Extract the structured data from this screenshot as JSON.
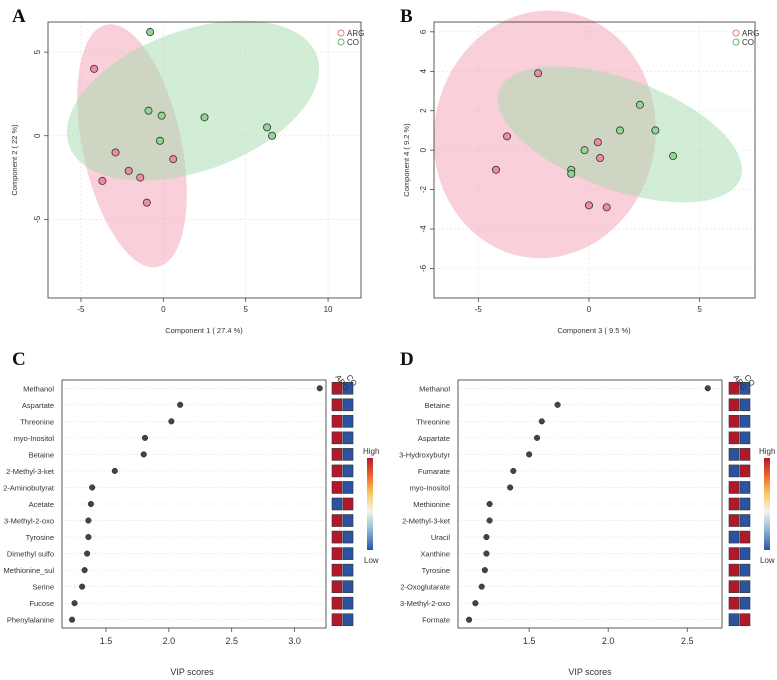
{
  "colors": {
    "arg": "#e8788f",
    "arg_fill": "#f4a0b4",
    "co": "#5cbf6c",
    "co_fill": "#a3dbac",
    "heat_high": "#b2182b",
    "heat_low": "#2c52a0"
  },
  "chart_data": [
    {
      "type": "scatter",
      "panel": "A",
      "xlabel": "Component 1 ( 27.4 %)",
      "ylabel": "Component 2 ( 22 %)",
      "xlim": [
        -7,
        12
      ],
      "ylim": [
        -9.7,
        6.8
      ],
      "xticks": [
        -5,
        0,
        5,
        10
      ],
      "yticks": [
        -5,
        0,
        5
      ],
      "legend": [
        "ARG",
        "CO"
      ],
      "legend_position": "top-right",
      "series": [
        {
          "name": "ARG",
          "points": [
            [
              -4.2,
              4.0
            ],
            [
              -2.9,
              -1.0
            ],
            [
              -2.1,
              -2.1
            ],
            [
              -1.4,
              -2.5
            ],
            [
              -1.0,
              -4.0
            ],
            [
              -3.7,
              -2.7
            ],
            [
              0.6,
              -1.4
            ]
          ]
        },
        {
          "name": "CO",
          "points": [
            [
              -0.8,
              6.2
            ],
            [
              -0.9,
              1.5
            ],
            [
              -0.1,
              1.2
            ],
            [
              -0.2,
              -0.3
            ],
            [
              2.5,
              1.1
            ],
            [
              6.3,
              0.5
            ],
            [
              6.6,
              0.0
            ]
          ]
        }
      ],
      "ellipses": [
        {
          "series": "ARG",
          "cx": -1.9,
          "cy": -0.6,
          "rx": 3.0,
          "ry": 7.4,
          "angle": -12
        },
        {
          "series": "CO",
          "cx": 1.8,
          "cy": 2.1,
          "rx": 8.0,
          "ry": 4.2,
          "angle": -20
        }
      ]
    },
    {
      "type": "scatter",
      "panel": "B",
      "xlabel": "Component 3 ( 9.5 %)",
      "ylabel": "Component 4 ( 9.2 %)",
      "xlim": [
        -7,
        7.5
      ],
      "ylim": [
        -7.5,
        6.5
      ],
      "xticks": [
        -5,
        0,
        5
      ],
      "yticks": [
        -6,
        -4,
        -2,
        0,
        2,
        4,
        6
      ],
      "legend": [
        "ARG",
        "CO"
      ],
      "legend_position": "top-right",
      "series": [
        {
          "name": "ARG",
          "points": [
            [
              -2.3,
              3.9
            ],
            [
              -3.7,
              0.7
            ],
            [
              -4.2,
              -1.0
            ],
            [
              0.4,
              0.4
            ],
            [
              0.5,
              -0.4
            ],
            [
              0.0,
              -2.8
            ],
            [
              0.8,
              -2.9
            ]
          ]
        },
        {
          "name": "CO",
          "points": [
            [
              2.3,
              2.3
            ],
            [
              3.0,
              1.0
            ],
            [
              1.4,
              1.0
            ],
            [
              -0.2,
              0.0
            ],
            [
              -0.8,
              -1.0
            ],
            [
              -0.8,
              -1.2
            ],
            [
              3.8,
              -0.3
            ]
          ]
        }
      ],
      "ellipses": [
        {
          "series": "ARG",
          "cx": -2.0,
          "cy": 0.8,
          "rx": 5.0,
          "ry": 6.3,
          "angle": 10
        },
        {
          "series": "CO",
          "cx": 1.4,
          "cy": 0.8,
          "rx": 5.8,
          "ry": 2.8,
          "angle": 20
        }
      ]
    },
    {
      "type": "scatter",
      "panel": "C",
      "xlabel": "VIP scores",
      "xlim": [
        1.15,
        3.25
      ],
      "xticks": [
        1.5,
        2.0,
        2.5,
        3.0
      ],
      "items": [
        {
          "name": "Methanol",
          "vip": 3.2,
          "arg": "high",
          "co": "low"
        },
        {
          "name": "Aspartate",
          "vip": 2.09,
          "arg": "high",
          "co": "low"
        },
        {
          "name": "Threonine",
          "vip": 2.02,
          "arg": "high",
          "co": "low"
        },
        {
          "name": "myo-Inositol",
          "vip": 1.81,
          "arg": "high",
          "co": "low"
        },
        {
          "name": "Betaine",
          "vip": 1.8,
          "arg": "high",
          "co": "low"
        },
        {
          "name": "2-Methyl-3-ket",
          "vip": 1.57,
          "arg": "high",
          "co": "low"
        },
        {
          "name": "2-Aminobutyrat",
          "vip": 1.39,
          "arg": "high",
          "co": "low"
        },
        {
          "name": "Acetate",
          "vip": 1.38,
          "arg": "low",
          "co": "high"
        },
        {
          "name": "3-Methyl-2-oxo",
          "vip": 1.36,
          "arg": "high",
          "co": "low"
        },
        {
          "name": "Tyrosine",
          "vip": 1.36,
          "arg": "high",
          "co": "low"
        },
        {
          "name": "Dimethyl sulfo",
          "vip": 1.35,
          "arg": "high",
          "co": "low"
        },
        {
          "name": "Methionine_sul",
          "vip": 1.33,
          "arg": "high",
          "co": "low"
        },
        {
          "name": "Serine",
          "vip": 1.31,
          "arg": "high",
          "co": "low"
        },
        {
          "name": "Fucose",
          "vip": 1.25,
          "arg": "high",
          "co": "low"
        },
        {
          "name": "Phenylalanine",
          "vip": 1.23,
          "arg": "high",
          "co": "low"
        }
      ],
      "heat_columns": [
        "ARG",
        "CO"
      ],
      "colorbar": {
        "high": "High",
        "low": "Low"
      }
    },
    {
      "type": "scatter",
      "panel": "D",
      "xlabel": "VIP scores",
      "xlim": [
        1.05,
        2.72
      ],
      "xticks": [
        1.5,
        2.0,
        2.5
      ],
      "items": [
        {
          "name": "Methanol",
          "vip": 2.63,
          "arg": "high",
          "co": "low"
        },
        {
          "name": "Betaine",
          "vip": 1.68,
          "arg": "high",
          "co": "low"
        },
        {
          "name": "Threonine",
          "vip": 1.58,
          "arg": "high",
          "co": "low"
        },
        {
          "name": "Aspartate",
          "vip": 1.55,
          "arg": "high",
          "co": "low"
        },
        {
          "name": "3-Hydroxybutyr",
          "vip": 1.5,
          "arg": "low",
          "co": "high"
        },
        {
          "name": "Fumarate",
          "vip": 1.4,
          "arg": "low",
          "co": "high"
        },
        {
          "name": "myo-Inositol",
          "vip": 1.38,
          "arg": "high",
          "co": "low"
        },
        {
          "name": "Methionine",
          "vip": 1.25,
          "arg": "high",
          "co": "low"
        },
        {
          "name": "2-Methyl-3-ket",
          "vip": 1.25,
          "arg": "high",
          "co": "low"
        },
        {
          "name": "Uracil",
          "vip": 1.23,
          "arg": "low",
          "co": "high"
        },
        {
          "name": "Xanthine",
          "vip": 1.23,
          "arg": "high",
          "co": "low"
        },
        {
          "name": "Tyrosine",
          "vip": 1.22,
          "arg": "high",
          "co": "low"
        },
        {
          "name": "2-Oxoglutarate",
          "vip": 1.2,
          "arg": "high",
          "co": "low"
        },
        {
          "name": "3-Methyl-2-oxo",
          "vip": 1.16,
          "arg": "high",
          "co": "low"
        },
        {
          "name": "Formate",
          "vip": 1.12,
          "arg": "low",
          "co": "high"
        }
      ],
      "heat_columns": [
        "ARG",
        "CO"
      ],
      "colorbar": {
        "high": "High",
        "low": "Low"
      }
    }
  ]
}
